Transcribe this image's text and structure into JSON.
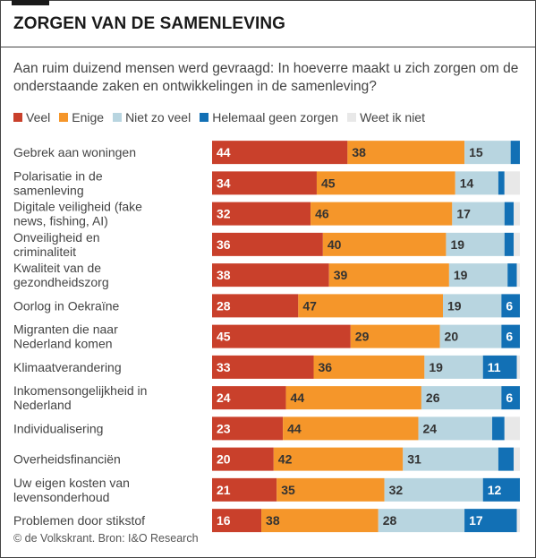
{
  "header": {
    "title": "ZORGEN VAN DE SAMENLEVING",
    "subtitle": "Aan ruim duizend mensen werd gevraagd: In hoeverre maakt u zich zorgen om de onderstaande zaken en ontwikkelingen in de samenleving?"
  },
  "footer": {
    "source": "© de Volkskrant. Bron: I&O Research"
  },
  "colors": {
    "veel": "#c9402b",
    "enige": "#f5962a",
    "niet_zo_veel": "#b8d5e0",
    "helemaal_geen": "#1270b5",
    "weet_ik_niet": "#e8e8e8"
  },
  "chart_data": {
    "type": "bar",
    "orientation": "horizontal",
    "stacked": true,
    "unit": "percent",
    "xlim": [
      0,
      100
    ],
    "legend_position": "top-left",
    "categories": [
      "Gebrek aan woningen",
      "Polarisatie in de samenleving",
      "Digitale veiligheid (fake news, fishing, AI)",
      "Onveiligheid en criminaliteit",
      "Kwaliteit van de gezondheidszorg",
      "Oorlog in Oekraïne",
      "Migranten die naar Nederland komen",
      "Klimaatverandering",
      "Inkomensongelijkheid in Nederland",
      "Individualisering",
      "Overheidsfinanciën",
      "Uw eigen kosten van levensonderhoud",
      "Problemen door stikstof"
    ],
    "series": [
      {
        "name": "Veel",
        "color": "#c9402b",
        "label_color": "#ffffff",
        "values": [
          44,
          34,
          32,
          36,
          38,
          28,
          45,
          33,
          24,
          23,
          20,
          21,
          16
        ],
        "show_labels": [
          true,
          true,
          true,
          true,
          true,
          true,
          true,
          true,
          true,
          true,
          true,
          true,
          true
        ]
      },
      {
        "name": "Enige",
        "color": "#f5962a",
        "label_color": "#333333",
        "values": [
          38,
          45,
          46,
          40,
          39,
          47,
          29,
          36,
          44,
          44,
          42,
          35,
          38
        ],
        "show_labels": [
          true,
          true,
          true,
          true,
          true,
          true,
          true,
          true,
          true,
          true,
          true,
          true,
          true
        ]
      },
      {
        "name": "Niet zo veel",
        "color": "#b8d5e0",
        "label_color": "#333333",
        "values": [
          15,
          14,
          17,
          19,
          19,
          19,
          20,
          19,
          26,
          24,
          31,
          32,
          28
        ],
        "show_labels": [
          true,
          true,
          true,
          true,
          true,
          true,
          true,
          true,
          true,
          true,
          true,
          true,
          true
        ]
      },
      {
        "name": "Helemaal geen zorgen",
        "color": "#1270b5",
        "label_color": "#ffffff",
        "values": [
          3,
          2,
          3,
          3,
          3,
          6,
          6,
          11,
          6,
          4,
          5,
          12,
          17
        ],
        "show_labels": [
          false,
          false,
          false,
          false,
          false,
          true,
          true,
          true,
          true,
          false,
          false,
          true,
          true
        ]
      },
      {
        "name": "Weet ik niet",
        "color": "#e8e8e8",
        "label_color": "#333333",
        "values": [
          0,
          5,
          2,
          2,
          1,
          0,
          0,
          1,
          0,
          6,
          2,
          0,
          1
        ],
        "show_labels": [
          false,
          false,
          false,
          false,
          false,
          false,
          false,
          false,
          false,
          false,
          false,
          false,
          false
        ]
      }
    ]
  }
}
